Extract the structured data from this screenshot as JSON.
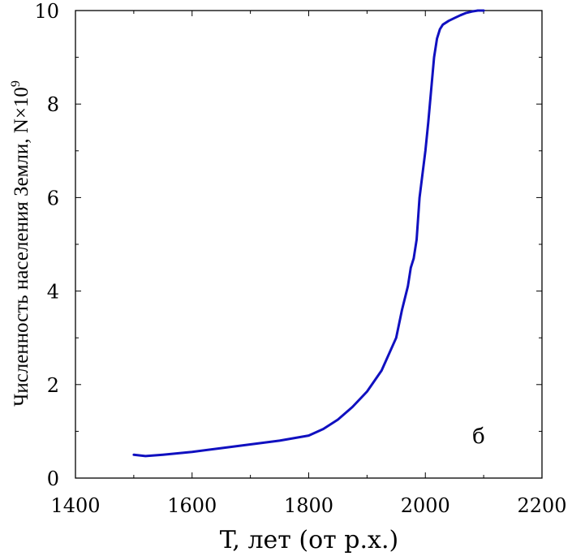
{
  "chart_data": {
    "type": "line",
    "xlabel": "T, лет (от р.х.)",
    "ylabel_main": "Численность населения Земли, N×10",
    "ylabel_sup": "9",
    "annotation": "б",
    "xlim": [
      1400,
      2200
    ],
    "ylim": [
      0,
      10
    ],
    "x_ticks": [
      1400,
      1600,
      1800,
      2000,
      2200
    ],
    "x_tick_labels": [
      "1400",
      "1600",
      "1800",
      "2000",
      "2200"
    ],
    "y_ticks": [
      0,
      2,
      4,
      6,
      8,
      10
    ],
    "y_tick_labels": [
      "0",
      "2",
      "4",
      "6",
      "8",
      "10"
    ],
    "grid": false,
    "series": [
      {
        "color": "#1010c0",
        "x": [
          1500,
          1520,
          1550,
          1600,
          1650,
          1700,
          1750,
          1800,
          1825,
          1850,
          1875,
          1900,
          1925,
          1950,
          1960,
          1970,
          1975,
          1980,
          1985,
          1990,
          1995,
          2000,
          2005,
          2010,
          2015,
          2020,
          2025,
          2030,
          2040,
          2050,
          2060,
          2070,
          2080,
          2090,
          2100
        ],
        "y": [
          0.5,
          0.47,
          0.5,
          0.56,
          0.64,
          0.72,
          0.8,
          0.91,
          1.05,
          1.25,
          1.52,
          1.85,
          2.3,
          3.0,
          3.6,
          4.1,
          4.5,
          4.7,
          5.1,
          6.0,
          6.5,
          7.0,
          7.6,
          8.3,
          9.0,
          9.4,
          9.6,
          9.7,
          9.78,
          9.84,
          9.9,
          9.95,
          9.98,
          10.0,
          10.0
        ]
      }
    ]
  }
}
